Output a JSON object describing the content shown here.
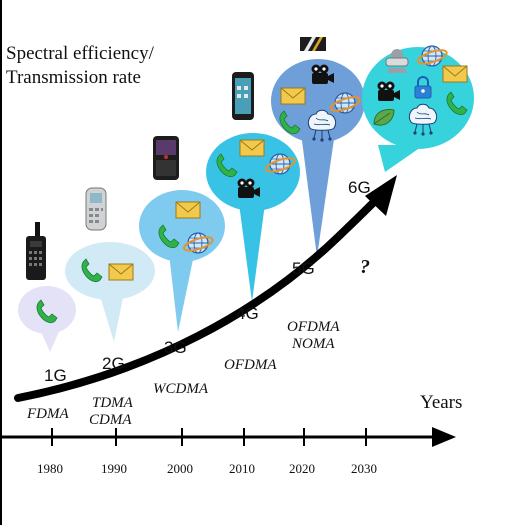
{
  "y_axis_label": [
    "Spectral efficiency/",
    "Transmission rate"
  ],
  "x_axis_label": "Years",
  "years": [
    "1980",
    "1990",
    "2000",
    "2010",
    "2020",
    "2030"
  ],
  "generations": [
    "1G",
    "2G",
    "3G",
    "4G",
    "5G",
    "6G"
  ],
  "technologies": {
    "g1": [
      "FDMA"
    ],
    "g2": [
      "TDMA",
      "CDMA"
    ],
    "g3": [
      "WCDMA"
    ],
    "g4": [
      "OFDMA"
    ],
    "g5": [
      "OFDMA",
      "NOMA"
    ]
  },
  "unknown_mark": "?",
  "colors": {
    "bubble_1g": "#e4e2f6",
    "bubble_2g": "#d2eaf5",
    "bubble_3g": "#7fcbef",
    "bubble_4g": "#38c3e6",
    "bubble_5g": "#6f9fd8",
    "bubble_6g": "#37d3dc",
    "arrow": "#000000",
    "phone_green": "#2fb24a",
    "envelope": "#f2c94c"
  },
  "icons": [
    "phone-icon",
    "envelope-icon",
    "globe-icon",
    "video-camera-icon",
    "brain-circuit-icon",
    "lock-icon",
    "leaf-icon",
    "vr-headset-icon",
    "mobile-device-icon"
  ]
}
